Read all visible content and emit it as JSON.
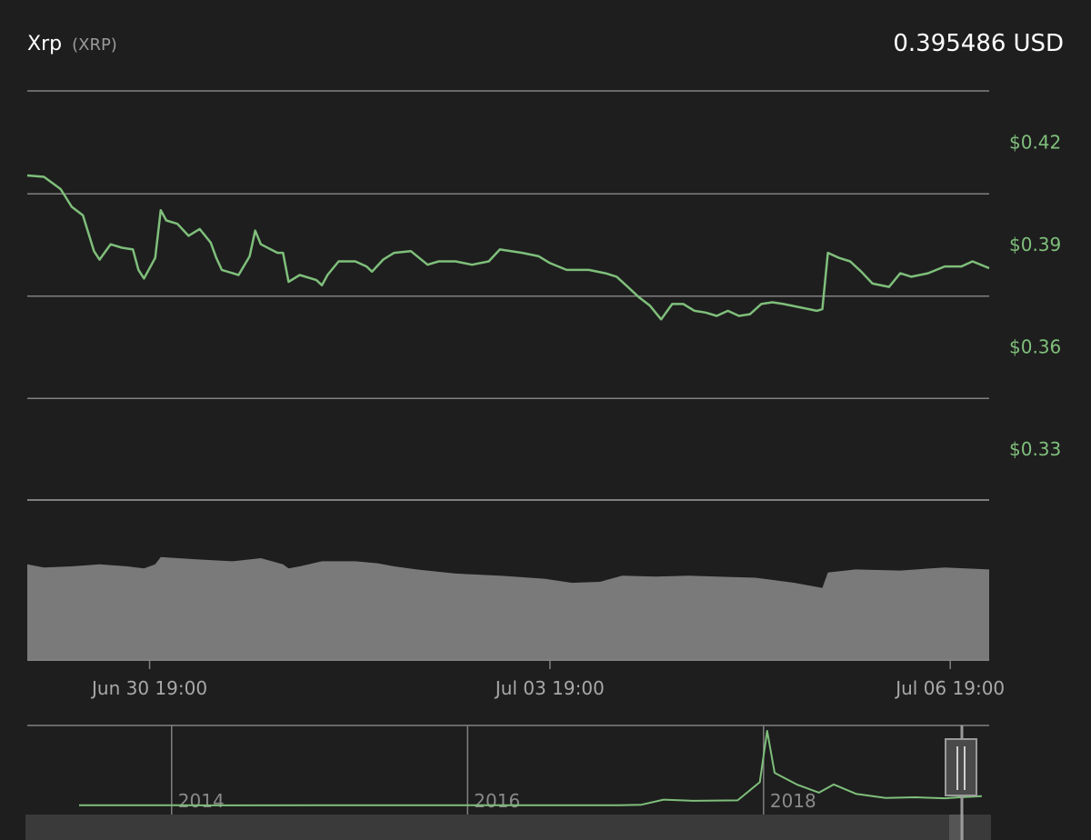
{
  "header": {
    "coin_name": "Xrp",
    "coin_symbol": "(XRP)",
    "price": "0.395486",
    "currency": "USD"
  },
  "colors": {
    "background": "#1e1e1e",
    "line": "#7fbf7b",
    "grid": "#808080",
    "volume": "#7a7a7a",
    "navigator_mask": "#3a3a3a"
  },
  "chart_data": {
    "type": "line",
    "title": "",
    "xlabel": "",
    "ylabel": "",
    "x_range": [
      "2019-06-29 21:00",
      "2019-07-07 02:00"
    ],
    "ylim": [
      0.315,
      0.435
    ],
    "y_ticks": [
      0.42,
      0.39,
      0.36,
      0.33
    ],
    "y_tick_labels": [
      "$0.42",
      "$0.39",
      "$0.36",
      "$0.33"
    ],
    "x_ticks": [
      "2019-06-30 19:00",
      "2019-07-03 19:00",
      "2019-07-06 19:00"
    ],
    "x_tick_labels": [
      "Jun 30 19:00",
      "Jul 03 19:00",
      "Jul 06 19:00"
    ],
    "grid": true,
    "series": [
      {
        "values": [
          [
            "2019-06-29 21:00",
            0.4102
          ],
          [
            "2019-06-30 00:00",
            0.4098
          ],
          [
            "2019-06-30 03:00",
            0.4062
          ],
          [
            "2019-06-30 05:00",
            0.401
          ],
          [
            "2019-06-30 07:00",
            0.3985
          ],
          [
            "2019-06-30 09:00",
            0.388
          ],
          [
            "2019-06-30 10:00",
            0.3855
          ],
          [
            "2019-06-30 12:00",
            0.39
          ],
          [
            "2019-06-30 14:00",
            0.389
          ],
          [
            "2019-06-30 16:00",
            0.3885
          ],
          [
            "2019-06-30 17:00",
            0.3825
          ],
          [
            "2019-06-30 18:00",
            0.38
          ],
          [
            "2019-06-30 20:00",
            0.386
          ],
          [
            "2019-06-30 21:00",
            0.4
          ],
          [
            "2019-06-30 22:00",
            0.397
          ],
          [
            "2019-07-01 00:00",
            0.396
          ],
          [
            "2019-07-01 02:00",
            0.3925
          ],
          [
            "2019-07-01 04:00",
            0.3945
          ],
          [
            "2019-07-01 06:00",
            0.3905
          ],
          [
            "2019-07-01 07:00",
            0.386
          ],
          [
            "2019-07-01 08:00",
            0.3825
          ],
          [
            "2019-07-01 11:00",
            0.381
          ],
          [
            "2019-07-01 13:00",
            0.3865
          ],
          [
            "2019-07-01 14:00",
            0.394
          ],
          [
            "2019-07-01 15:00",
            0.39
          ],
          [
            "2019-07-01 18:00",
            0.3875
          ],
          [
            "2019-07-01 19:00",
            0.3875
          ],
          [
            "2019-07-01 20:00",
            0.379
          ],
          [
            "2019-07-01 22:00",
            0.381
          ],
          [
            "2019-07-02 01:00",
            0.3795
          ],
          [
            "2019-07-02 02:00",
            0.378
          ],
          [
            "2019-07-02 03:00",
            0.381
          ],
          [
            "2019-07-02 05:00",
            0.385
          ],
          [
            "2019-07-02 08:00",
            0.385
          ],
          [
            "2019-07-02 10:00",
            0.3835
          ],
          [
            "2019-07-02 11:00",
            0.382
          ],
          [
            "2019-07-02 13:00",
            0.3855
          ],
          [
            "2019-07-02 15:00",
            0.3875
          ],
          [
            "2019-07-02 18:00",
            0.388
          ],
          [
            "2019-07-02 21:00",
            0.384
          ],
          [
            "2019-07-02 23:00",
            0.385
          ],
          [
            "2019-07-03 02:00",
            0.385
          ],
          [
            "2019-07-03 05:00",
            0.384
          ],
          [
            "2019-07-03 08:00",
            0.385
          ],
          [
            "2019-07-03 10:00",
            0.3885
          ],
          [
            "2019-07-03 14:00",
            0.3875
          ],
          [
            "2019-07-03 17:00",
            0.3865
          ],
          [
            "2019-07-03 19:00",
            0.3845
          ],
          [
            "2019-07-03 22:00",
            0.3825
          ],
          [
            "2019-07-04 02:00",
            0.3825
          ],
          [
            "2019-07-04 05:00",
            0.3815
          ],
          [
            "2019-07-04 07:00",
            0.3805
          ],
          [
            "2019-07-04 09:00",
            0.3775
          ],
          [
            "2019-07-04 11:00",
            0.3745
          ],
          [
            "2019-07-04 13:00",
            0.372
          ],
          [
            "2019-07-04 15:00",
            0.368
          ],
          [
            "2019-07-04 17:00",
            0.3725
          ],
          [
            "2019-07-04 19:00",
            0.3725
          ],
          [
            "2019-07-04 21:00",
            0.3705
          ],
          [
            "2019-07-04 23:00",
            0.37
          ],
          [
            "2019-07-05 01:00",
            0.369
          ],
          [
            "2019-07-05 03:00",
            0.3705
          ],
          [
            "2019-07-05 05:00",
            0.369
          ],
          [
            "2019-07-05 07:00",
            0.3695
          ],
          [
            "2019-07-05 09:00",
            0.3725
          ],
          [
            "2019-07-05 11:00",
            0.373
          ],
          [
            "2019-07-05 13:00",
            0.3725
          ],
          [
            "2019-07-05 16:00",
            0.3715
          ],
          [
            "2019-07-05 19:00",
            0.3705
          ],
          [
            "2019-07-05 20:00",
            0.371
          ],
          [
            "2019-07-05 21:00",
            0.3875
          ],
          [
            "2019-07-05 23:00",
            0.386
          ],
          [
            "2019-07-06 01:00",
            0.385
          ],
          [
            "2019-07-06 03:00",
            0.382
          ],
          [
            "2019-07-06 05:00",
            0.3785
          ],
          [
            "2019-07-06 08:00",
            0.3775
          ],
          [
            "2019-07-06 10:00",
            0.3815
          ],
          [
            "2019-07-06 12:00",
            0.3805
          ],
          [
            "2019-07-06 15:00",
            0.3815
          ],
          [
            "2019-07-06 18:00",
            0.3835
          ],
          [
            "2019-07-06 21:00",
            0.3835
          ],
          [
            "2019-07-06 23:00",
            0.385
          ],
          [
            "2019-07-07 02:00",
            0.383
          ]
        ]
      }
    ],
    "volume": {
      "values": [
        [
          "2019-06-29 21:00",
          0.93
        ],
        [
          "2019-06-30 00:00",
          0.9
        ],
        [
          "2019-06-30 05:00",
          0.91
        ],
        [
          "2019-06-30 10:00",
          0.93
        ],
        [
          "2019-06-30 15:00",
          0.91
        ],
        [
          "2019-06-30 18:00",
          0.89
        ],
        [
          "2019-06-30 20:00",
          0.93
        ],
        [
          "2019-06-30 21:00",
          1.0
        ],
        [
          "2019-07-01 03:00",
          0.98
        ],
        [
          "2019-07-01 10:00",
          0.96
        ],
        [
          "2019-07-01 15:00",
          0.99
        ],
        [
          "2019-07-01 19:00",
          0.93
        ],
        [
          "2019-07-01 20:00",
          0.89
        ],
        [
          "2019-07-01 22:00",
          0.91
        ],
        [
          "2019-07-02 02:00",
          0.96
        ],
        [
          "2019-07-02 08:00",
          0.96
        ],
        [
          "2019-07-02 12:00",
          0.94
        ],
        [
          "2019-07-02 15:00",
          0.91
        ],
        [
          "2019-07-02 19:00",
          0.88
        ],
        [
          "2019-07-03 02:00",
          0.84
        ],
        [
          "2019-07-03 10:00",
          0.82
        ],
        [
          "2019-07-03 18:00",
          0.79
        ],
        [
          "2019-07-03 23:00",
          0.75
        ],
        [
          "2019-07-04 04:00",
          0.76
        ],
        [
          "2019-07-04 08:00",
          0.82
        ],
        [
          "2019-07-04 14:00",
          0.81
        ],
        [
          "2019-07-04 20:00",
          0.82
        ],
        [
          "2019-07-05 01:00",
          0.81
        ],
        [
          "2019-07-05 08:00",
          0.8
        ],
        [
          "2019-07-05 15:00",
          0.75
        ],
        [
          "2019-07-05 20:00",
          0.7
        ],
        [
          "2019-07-05 21:00",
          0.85
        ],
        [
          "2019-07-06 02:00",
          0.88
        ],
        [
          "2019-07-06 10:00",
          0.87
        ],
        [
          "2019-07-06 18:00",
          0.9
        ],
        [
          "2019-07-07 02:00",
          0.88
        ]
      ]
    },
    "navigator": {
      "x_tick_labels": [
        "2014",
        "2016",
        "2018"
      ],
      "values": [
        [
          2013.35,
          0.006
        ],
        [
          2014.0,
          0.006
        ],
        [
          2014.2,
          0.005
        ],
        [
          2015.0,
          0.009
        ],
        [
          2016.0,
          0.006
        ],
        [
          2017.0,
          0.006
        ],
        [
          2017.15,
          0.03
        ],
        [
          2017.3,
          0.25
        ],
        [
          2017.5,
          0.2
        ],
        [
          2017.8,
          0.22
        ],
        [
          2017.95,
          1.0
        ],
        [
          2018.0,
          3.2
        ],
        [
          2018.05,
          1.4
        ],
        [
          2018.2,
          0.9
        ],
        [
          2018.35,
          0.55
        ],
        [
          2018.45,
          0.9
        ],
        [
          2018.6,
          0.5
        ],
        [
          2018.8,
          0.32
        ],
        [
          2019.0,
          0.35
        ],
        [
          2019.2,
          0.31
        ],
        [
          2019.3,
          0.35
        ],
        [
          2019.45,
          0.4
        ]
      ]
    }
  }
}
